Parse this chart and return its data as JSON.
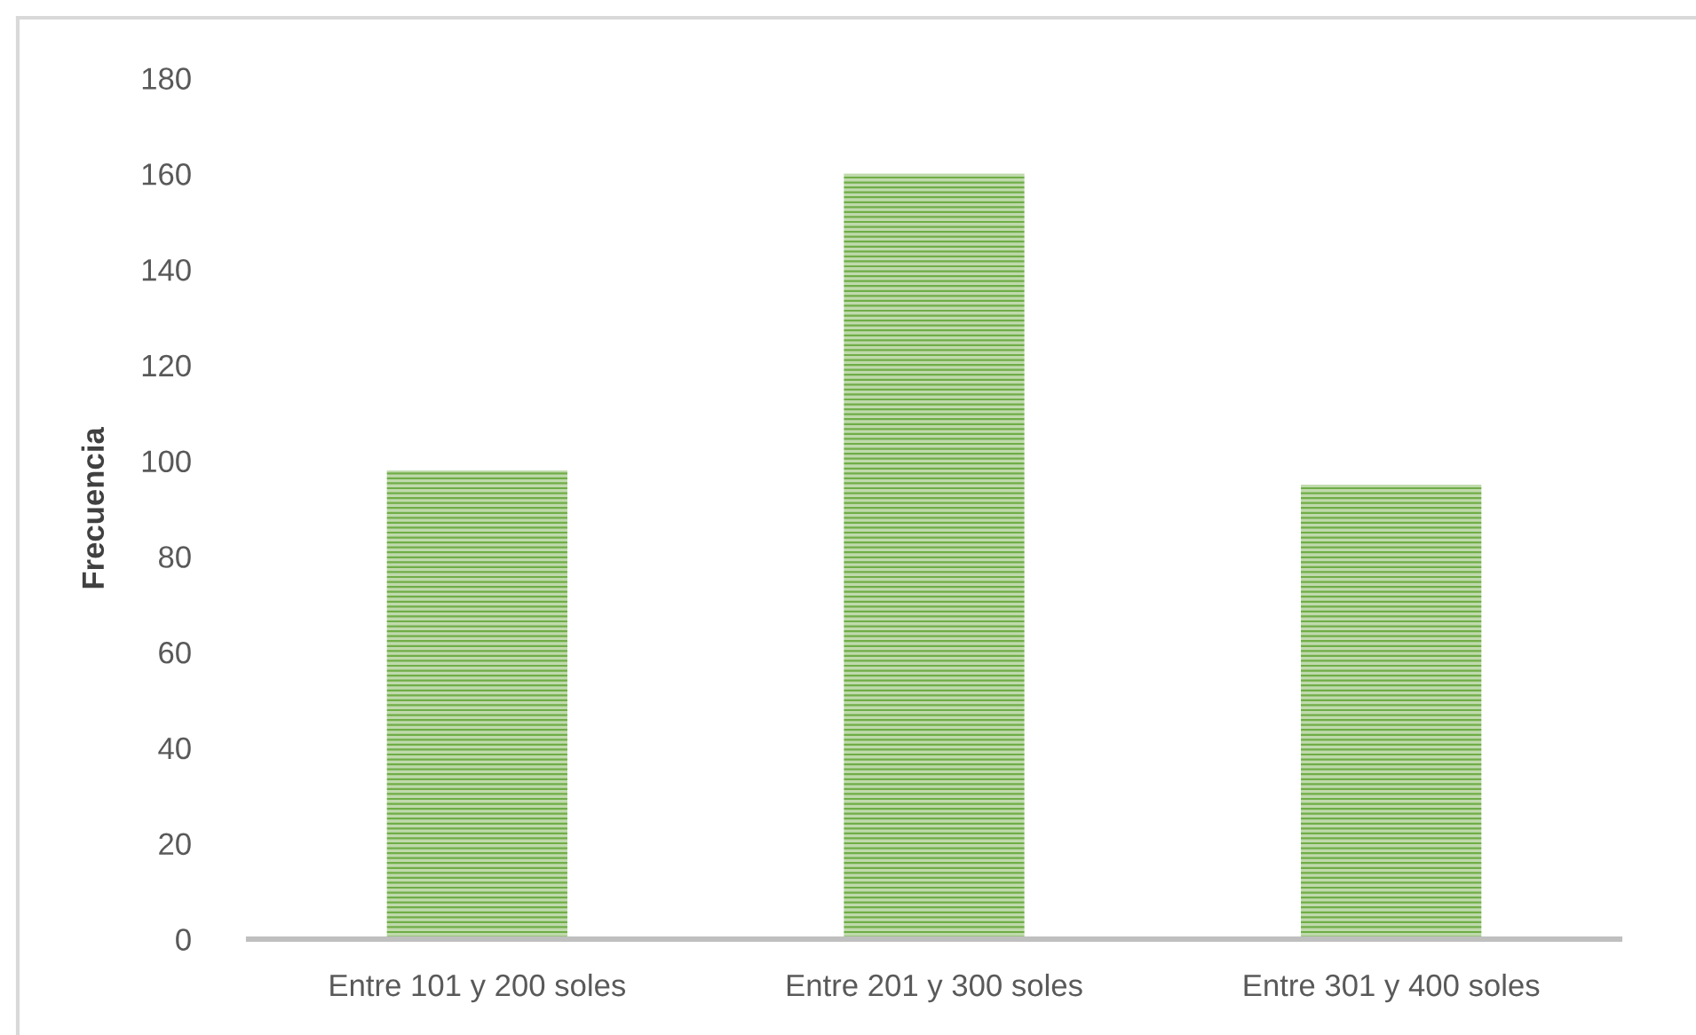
{
  "chart_data": {
    "type": "bar",
    "ylabel": "Frecuencia",
    "categories": [
      "Entre 101 y 200 soles",
      "Entre 201 y 300 soles",
      "Entre 301 y 400 soles"
    ],
    "values": [
      98,
      160,
      95
    ],
    "color": "#70ad47",
    "ylim": [
      0,
      180
    ],
    "yticks": [
      0,
      20,
      40,
      60,
      80,
      100,
      120,
      140,
      160,
      180
    ]
  }
}
